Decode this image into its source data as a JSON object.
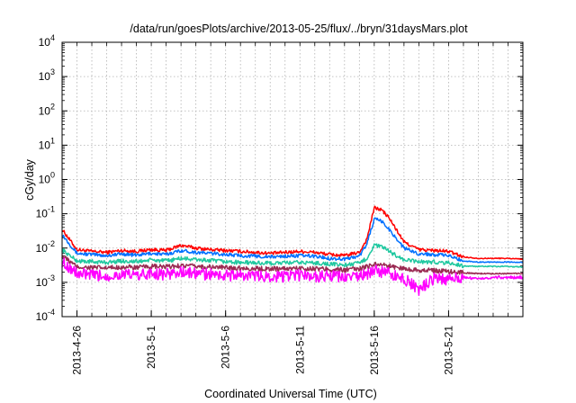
{
  "chart_data": {
    "type": "line",
    "title": "/data/run/goesPlots/archive/2013-05-25/flux/../bryn/31daysMars.plot",
    "xlabel": "Coordinated Universal Time (UTC)",
    "ylabel": "cGy/day",
    "yscale": "log",
    "ylim": [
      0.0001,
      10000
    ],
    "xlim": [
      "2013-04-25",
      "2013-05-26"
    ],
    "x_ticks": [
      "2013-4-26",
      "2013-5-1",
      "2013-5-6",
      "2013-5-11",
      "2013-5-16",
      "2013-5-21"
    ],
    "y_ticks": [
      {
        "base": "10",
        "exp": "-4"
      },
      {
        "base": "10",
        "exp": "-3"
      },
      {
        "base": "10",
        "exp": "-2"
      },
      {
        "base": "10",
        "exp": "-1"
      },
      {
        "base": "10",
        "exp": "0"
      },
      {
        "base": "10",
        "exp": "1"
      },
      {
        "base": "10",
        "exp": "2"
      },
      {
        "base": "10",
        "exp": "3"
      },
      {
        "base": "10",
        "exp": "4"
      }
    ],
    "grid": true,
    "x": [
      "2013-04-25",
      "2013-04-26",
      "2013-04-27",
      "2013-04-28",
      "2013-04-29",
      "2013-04-30",
      "2013-05-01",
      "2013-05-02",
      "2013-05-03",
      "2013-05-04",
      "2013-05-05",
      "2013-05-06",
      "2013-05-07",
      "2013-05-08",
      "2013-05-09",
      "2013-05-10",
      "2013-05-11",
      "2013-05-12",
      "2013-05-13",
      "2013-05-14",
      "2013-05-15",
      "2013-05-15T12:00",
      "2013-05-16",
      "2013-05-16T12:00",
      "2013-05-17",
      "2013-05-18",
      "2013-05-19",
      "2013-05-20",
      "2013-05-21",
      "2013-05-22",
      "2013-05-23",
      "2013-05-24",
      "2013-05-25",
      "2013-05-26"
    ],
    "series": [
      {
        "color": "#ff0000",
        "values": [
          0.035,
          0.009,
          0.008,
          0.0075,
          0.0085,
          0.008,
          0.009,
          0.0085,
          0.012,
          0.01,
          0.009,
          0.0085,
          0.008,
          0.0075,
          0.007,
          0.0075,
          0.008,
          0.0075,
          0.0065,
          0.006,
          0.0075,
          0.018,
          0.15,
          0.13,
          0.075,
          0.015,
          0.009,
          0.0085,
          0.008,
          0.0055,
          0.005,
          0.005,
          0.005,
          0.0048
        ]
      },
      {
        "color": "#0070ff",
        "values": [
          0.025,
          0.007,
          0.0065,
          0.006,
          0.0068,
          0.0062,
          0.007,
          0.0065,
          0.0085,
          0.0075,
          0.007,
          0.0065,
          0.006,
          0.0058,
          0.0055,
          0.0058,
          0.006,
          0.0058,
          0.005,
          0.0048,
          0.0058,
          0.013,
          0.07,
          0.06,
          0.035,
          0.01,
          0.0068,
          0.0065,
          0.006,
          0.0042,
          0.0039,
          0.0039,
          0.0039,
          0.0038
        ]
      },
      {
        "color": "#20c8a0",
        "values": [
          0.009,
          0.0042,
          0.004,
          0.0038,
          0.0042,
          0.004,
          0.0045,
          0.0042,
          0.005,
          0.0046,
          0.0043,
          0.004,
          0.0038,
          0.0037,
          0.0036,
          0.0037,
          0.0038,
          0.0037,
          0.0034,
          0.0032,
          0.0036,
          0.005,
          0.012,
          0.011,
          0.008,
          0.0045,
          0.004,
          0.0039,
          0.0037,
          0.003,
          0.0029,
          0.0029,
          0.0029,
          0.0028
        ]
      },
      {
        "color": "#9a2a52",
        "values": [
          0.006,
          0.0028,
          0.0027,
          0.0026,
          0.0028,
          0.0027,
          0.0029,
          0.0028,
          0.0031,
          0.0029,
          0.0028,
          0.0027,
          0.0026,
          0.0025,
          0.0025,
          0.0025,
          0.0026,
          0.0025,
          0.0024,
          0.0023,
          0.0025,
          0.0028,
          0.0035,
          0.0033,
          0.003,
          0.0025,
          0.0023,
          0.0022,
          0.0021,
          0.0019,
          0.0018,
          0.0018,
          0.0018,
          0.0018
        ]
      },
      {
        "color": "#ff00ff",
        "values": [
          0.004,
          0.0018,
          0.0016,
          0.0015,
          0.0017,
          0.0016,
          0.0018,
          0.0017,
          0.002,
          0.0018,
          0.0017,
          0.0016,
          0.0016,
          0.0015,
          0.0015,
          0.0015,
          0.0016,
          0.0015,
          0.0015,
          0.0014,
          0.0015,
          0.0017,
          0.0022,
          0.002,
          0.0018,
          0.0013,
          0.0006,
          0.0013,
          0.0012,
          0.0014,
          0.0013,
          0.0014,
          0.0014,
          0.0014
        ]
      }
    ]
  }
}
